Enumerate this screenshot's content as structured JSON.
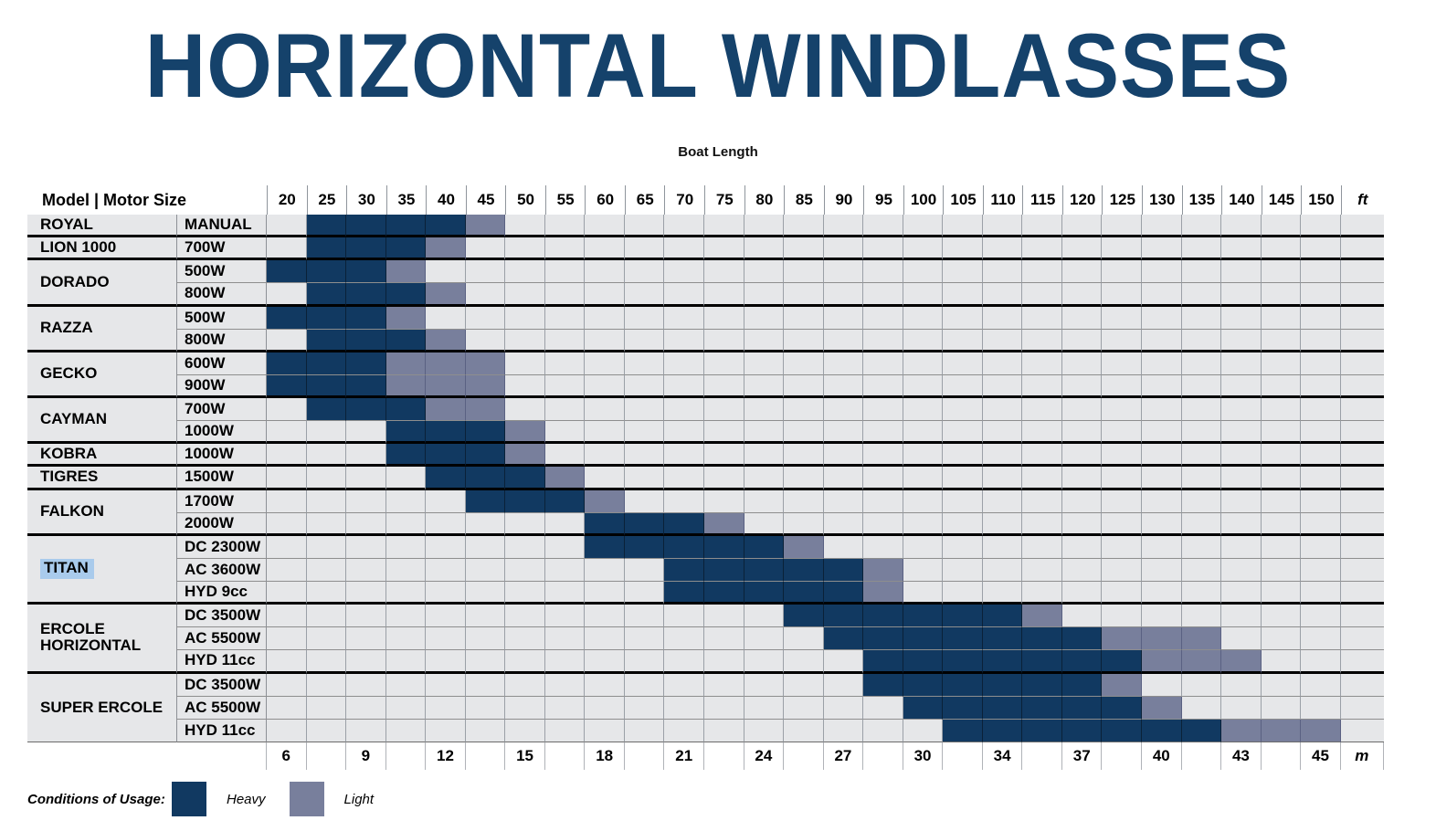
{
  "title": "HORIZONTAL WINDLASSES",
  "subtitle": "Boat Length",
  "legend": {
    "label": "Conditions of Usage:",
    "heavy_label": "Heavy",
    "light_label": "Light"
  },
  "colors": {
    "heavy": "#113961",
    "light": "#787F9C",
    "row_background": "#E6E7E9",
    "title": "#15426B",
    "titan_highlight": "#A9CBEC"
  },
  "chart_data": {
    "type": "table",
    "title": "HORIZONTAL WINDLASSES",
    "x_axis_top_label": "Boat Length",
    "header_label": "Model | Motor Size",
    "ft_axis_label": "ft",
    "m_axis_label": "m",
    "ft_columns": [
      20,
      25,
      30,
      35,
      40,
      45,
      50,
      55,
      60,
      65,
      70,
      75,
      80,
      85,
      90,
      95,
      100,
      105,
      110,
      115,
      120,
      125,
      130,
      135,
      140,
      145,
      150
    ],
    "m_row": [
      "6",
      "",
      "9",
      "",
      "12",
      "",
      "15",
      "",
      "18",
      "",
      "21",
      "",
      "24",
      "",
      "27",
      "",
      "30",
      "",
      "34",
      "",
      "37",
      "",
      "40",
      "",
      "43",
      "",
      "45"
    ],
    "usage_legend": {
      "heavy": "Heavy",
      "light": "Light"
    },
    "groups": [
      {
        "model": "ROYAL",
        "rows": [
          {
            "motor": "MANUAL",
            "heavy": [
              25,
              40
            ],
            "light": [
              45,
              45
            ]
          }
        ]
      },
      {
        "model": "LION 1000",
        "rows": [
          {
            "motor": "700W",
            "heavy": [
              25,
              35
            ],
            "light": [
              40,
              40
            ]
          }
        ]
      },
      {
        "model": "DORADO",
        "rows": [
          {
            "motor": "500W",
            "heavy": [
              20,
              30
            ],
            "light": [
              35,
              35
            ]
          },
          {
            "motor": "800W",
            "heavy": [
              25,
              35
            ],
            "light": [
              40,
              40
            ]
          }
        ]
      },
      {
        "model": "RAZZA",
        "rows": [
          {
            "motor": "500W",
            "heavy": [
              20,
              30
            ],
            "light": [
              35,
              35
            ]
          },
          {
            "motor": "800W",
            "heavy": [
              25,
              35
            ],
            "light": [
              40,
              40
            ]
          }
        ]
      },
      {
        "model": "GECKO",
        "rows": [
          {
            "motor": "600W",
            "heavy": [
              20,
              30
            ],
            "light": [
              35,
              45
            ]
          },
          {
            "motor": "900W",
            "heavy": [
              20,
              30
            ],
            "light": [
              35,
              45
            ]
          }
        ]
      },
      {
        "model": "CAYMAN",
        "rows": [
          {
            "motor": "700W",
            "heavy": [
              25,
              35
            ],
            "light": [
              40,
              45
            ]
          },
          {
            "motor": "1000W",
            "heavy": [
              35,
              45
            ],
            "light": [
              50,
              50
            ]
          }
        ]
      },
      {
        "model": "KOBRA",
        "rows": [
          {
            "motor": "1000W",
            "heavy": [
              35,
              45
            ],
            "light": [
              50,
              50
            ]
          }
        ]
      },
      {
        "model": "TIGRES",
        "rows": [
          {
            "motor": "1500W",
            "heavy": [
              40,
              50
            ],
            "light": [
              55,
              55
            ]
          }
        ]
      },
      {
        "model": "FALKON",
        "rows": [
          {
            "motor": "1700W",
            "heavy": [
              45,
              55
            ],
            "light": [
              60,
              60
            ]
          },
          {
            "motor": "2000W",
            "heavy": [
              60,
              70
            ],
            "light": [
              75,
              75
            ]
          }
        ]
      },
      {
        "model": "TITAN",
        "highlight": true,
        "rows": [
          {
            "motor": "DC 2300W",
            "heavy": [
              60,
              80
            ],
            "light": [
              85,
              85
            ]
          },
          {
            "motor": "AC 3600W",
            "heavy": [
              70,
              90
            ],
            "light": [
              95,
              95
            ]
          },
          {
            "motor": "HYD 9cc",
            "heavy": [
              70,
              90
            ],
            "light": [
              95,
              95
            ]
          }
        ]
      },
      {
        "model": "ERCOLE HORIZONTAL",
        "rows": [
          {
            "motor": "DC 3500W",
            "heavy": [
              85,
              110
            ],
            "light": [
              115,
              115
            ]
          },
          {
            "motor": "AC 5500W",
            "heavy": [
              90,
              120
            ],
            "light": [
              125,
              135
            ]
          },
          {
            "motor": "HYD 11cc",
            "heavy": [
              95,
              125
            ],
            "light": [
              130,
              140
            ]
          }
        ]
      },
      {
        "model": "SUPER ERCOLE",
        "rows": [
          {
            "motor": "DC 3500W",
            "heavy": [
              95,
              120
            ],
            "light": [
              125,
              125
            ]
          },
          {
            "motor": "AC 5500W",
            "heavy": [
              100,
              125
            ],
            "light": [
              130,
              130
            ]
          },
          {
            "motor": "HYD 11cc",
            "heavy": [
              105,
              135
            ],
            "light": [
              140,
              150
            ]
          }
        ]
      }
    ]
  }
}
